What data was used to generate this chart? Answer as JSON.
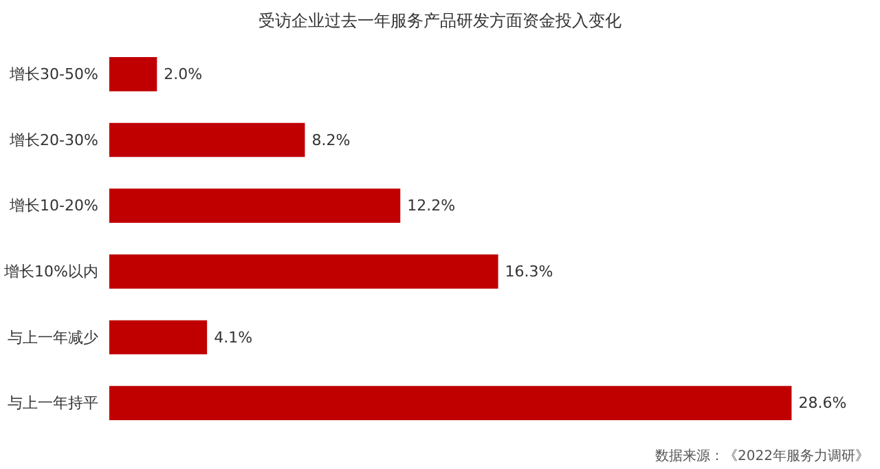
{
  "chart_data": {
    "type": "bar",
    "orientation": "horizontal",
    "title": "受访企业过去一年服务产品研发方面资金投入变化",
    "categories": [
      "增长30-50%",
      "增长20-30%",
      "增长10-20%",
      "增长10%以内",
      "与上一年减少",
      "与上一年持平"
    ],
    "values": [
      2.0,
      8.2,
      12.2,
      16.3,
      4.1,
      28.6
    ],
    "value_labels": [
      "2.0%",
      "8.2%",
      "12.2%",
      "16.3%",
      "4.1%",
      "28.6%"
    ],
    "color": "#c00000",
    "annotations": [
      "数据来源：《2022年服务力调研》"
    ],
    "tick_labels": "y",
    "grid": false
  }
}
